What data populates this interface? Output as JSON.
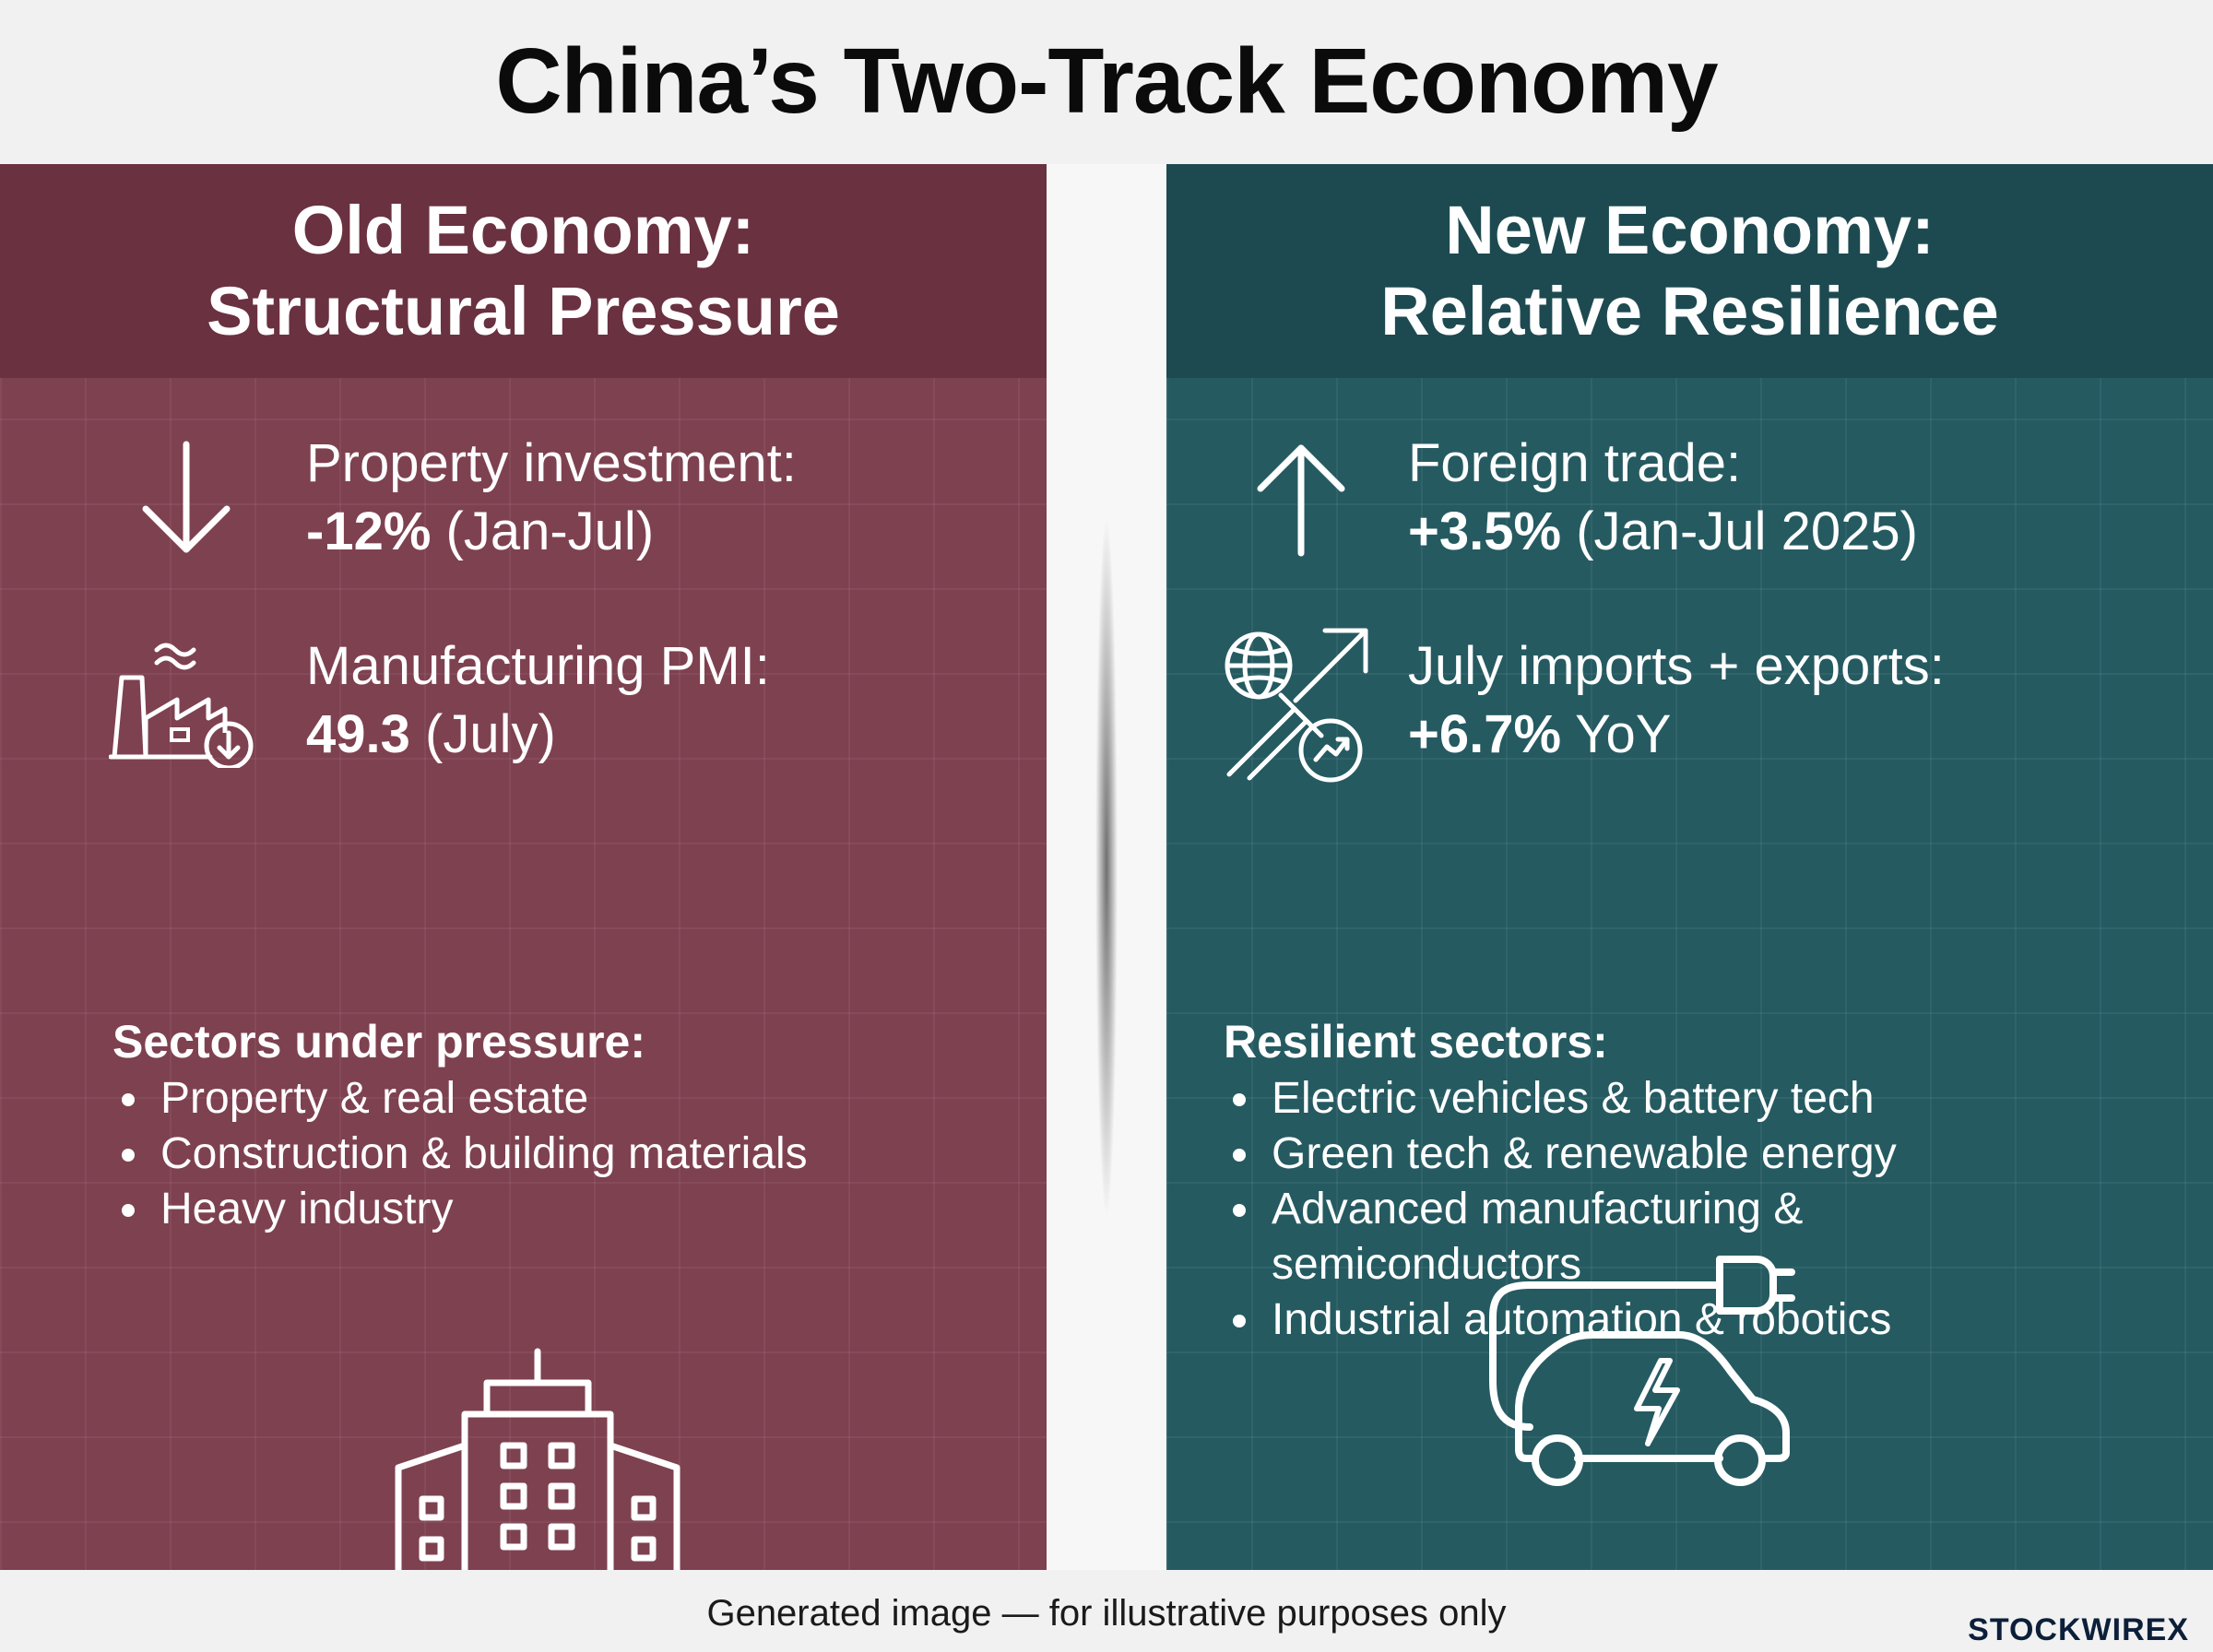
{
  "title": "China’s Two-Track Economy",
  "old_economy": {
    "heading_line1": "Old Economy:",
    "heading_line2": "Structural Pressure",
    "color": "#7e4150",
    "stat1": {
      "label": "Property investment:",
      "value": "-12%",
      "period": "(Jan-Jul)",
      "icon": "arrow-down-icon"
    },
    "stat2": {
      "label": "Manufacturing PMI:",
      "value": "49.3",
      "period": "(July)",
      "icon": "factory-decline-icon"
    },
    "sectors_title": "Sectors under pressure:",
    "sectors": [
      "Property & real estate",
      "Construction & building materials",
      "Heavy industry"
    ],
    "illustration": "office-building-icon"
  },
  "new_economy": {
    "heading_line1": "New Economy:",
    "heading_line2": "Relative Resilience",
    "color": "#255a61",
    "stat1": {
      "label": "Foreign trade:",
      "value": "+3.5%",
      "period": "(Jan-Jul 2025)",
      "icon": "arrow-up-icon"
    },
    "stat2": {
      "label": "July imports + exports:",
      "value": "+6.7%",
      "period": "YoY",
      "icon": "global-trade-icon"
    },
    "sectors_title": "Resilient sectors:",
    "sectors": [
      "Electric vehicles & battery tech",
      "Green tech & renewable energy",
      "Advanced manufacturing & semiconductors",
      "Industrial automation & robotics"
    ],
    "illustration": "electric-car-icon"
  },
  "footer": {
    "note": "Generated image — for illustrative purposes only",
    "brand": "STOCKWIRE",
    "brand_mark": "X"
  }
}
